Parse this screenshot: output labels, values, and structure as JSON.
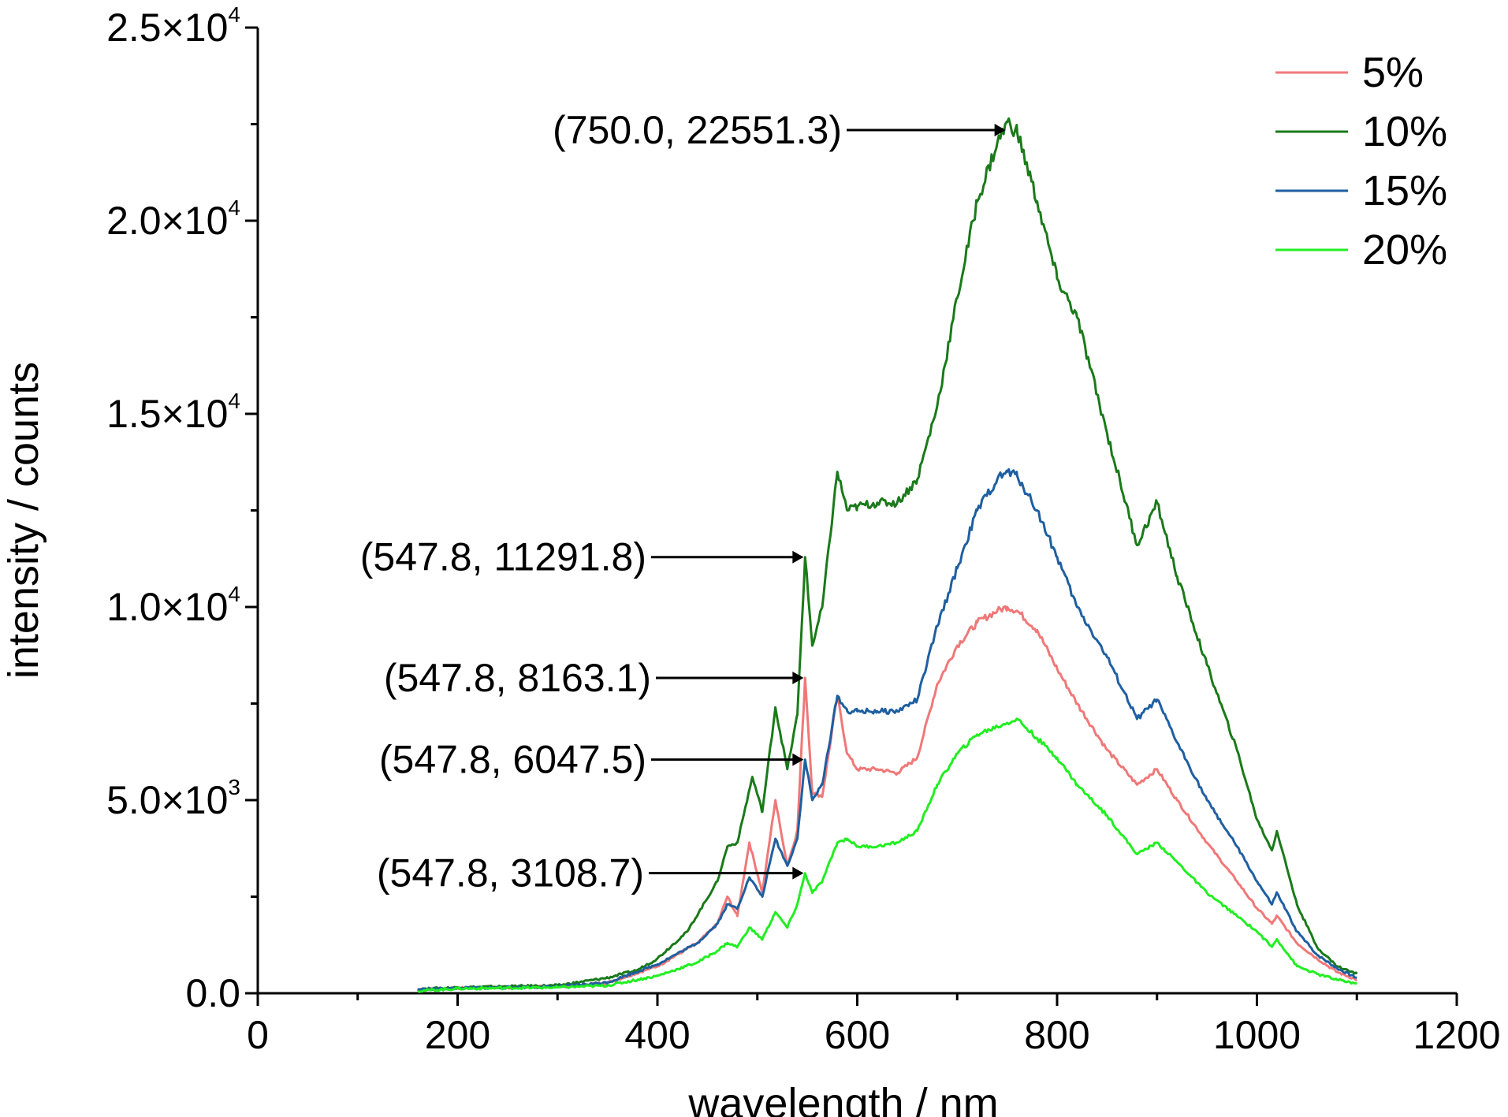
{
  "chart_data": {
    "type": "line",
    "xlabel": "wavelength / nm",
    "ylabel": "intensity / counts",
    "xlim": [
      0,
      1200
    ],
    "ylim": [
      0,
      25000
    ],
    "x_ticks": [
      "0",
      "200",
      "400",
      "600",
      "800",
      "1000",
      "1200"
    ],
    "y_ticks": [
      {
        "value": 0,
        "mantissa": "0.0",
        "exp": ""
      },
      {
        "value": 5000,
        "mantissa": "5.0×10",
        "exp": "3"
      },
      {
        "value": 10000,
        "mantissa": "1.0×10",
        "exp": "4"
      },
      {
        "value": 15000,
        "mantissa": "1.5×10",
        "exp": "4"
      },
      {
        "value": 20000,
        "mantissa": "2.0×10",
        "exp": "4"
      },
      {
        "value": 25000,
        "mantissa": "2.5×10",
        "exp": "4"
      }
    ],
    "grid": false,
    "legend_position": "top-right",
    "series": [
      {
        "name": "5%",
        "color": "#f07878",
        "x": [
          160,
          200,
          300,
          350,
          400,
          440,
          460,
          470,
          480,
          492,
          505,
          518,
          530,
          540,
          547.8,
          555,
          565,
          580,
          590,
          600,
          620,
          640,
          660,
          680,
          700,
          720,
          740,
          750,
          760,
          780,
          800,
          820,
          850,
          880,
          900,
          920,
          950,
          980,
          1000,
          1015,
          1020,
          1040,
          1060,
          1080,
          1100
        ],
        "y": [
          100,
          130,
          170,
          270,
          700,
          1300,
          1800,
          2500,
          2000,
          3900,
          2600,
          5000,
          3300,
          4200,
          8163,
          5200,
          5100,
          7700,
          6200,
          5800,
          5800,
          5700,
          6100,
          8000,
          9000,
          9600,
          9900,
          10000,
          9900,
          9400,
          8400,
          7500,
          6300,
          5400,
          5800,
          5000,
          3900,
          2900,
          2200,
          1800,
          2000,
          1300,
          900,
          550,
          350
        ]
      },
      {
        "name": "10%",
        "color": "#1a7a1a",
        "x": [
          160,
          200,
          300,
          350,
          380,
          400,
          430,
          460,
          470,
          480,
          495,
          505,
          518,
          530,
          540,
          547.8,
          555,
          565,
          580,
          590,
          600,
          620,
          640,
          660,
          680,
          700,
          720,
          740,
          750,
          760,
          780,
          800,
          820,
          850,
          880,
          900,
          920,
          950,
          980,
          1000,
          1015,
          1020,
          1040,
          1060,
          1080,
          1100
        ],
        "y": [
          100,
          150,
          200,
          400,
          600,
          900,
          1600,
          2900,
          3800,
          3900,
          5600,
          4700,
          7400,
          5800,
          7200,
          11292,
          9000,
          10000,
          13500,
          12500,
          12600,
          12700,
          12700,
          13300,
          15200,
          18000,
          20500,
          22000,
          22551,
          22300,
          20500,
          18500,
          17500,
          14500,
          11600,
          12700,
          10800,
          8500,
          6300,
          4500,
          3700,
          4200,
          2300,
          1200,
          700,
          500
        ]
      },
      {
        "name": "15%",
        "color": "#1f5fa0",
        "x": [
          160,
          200,
          300,
          350,
          400,
          440,
          460,
          470,
          480,
          492,
          505,
          518,
          530,
          540,
          547.8,
          555,
          565,
          580,
          590,
          600,
          620,
          640,
          660,
          680,
          700,
          720,
          740,
          750,
          760,
          780,
          800,
          820,
          850,
          880,
          900,
          920,
          950,
          980,
          1000,
          1015,
          1020,
          1040,
          1060,
          1080,
          1100
        ],
        "y": [
          100,
          130,
          170,
          280,
          750,
          1300,
          1800,
          2300,
          2200,
          3000,
          2500,
          4000,
          3300,
          4000,
          6048,
          5000,
          5400,
          7700,
          7300,
          7300,
          7300,
          7300,
          7600,
          9500,
          11000,
          12500,
          13300,
          13500,
          13400,
          12500,
          11300,
          10000,
          8700,
          7100,
          7600,
          6500,
          5000,
          3800,
          2900,
          2300,
          2600,
          1600,
          1000,
          650,
          400
        ]
      },
      {
        "name": "20%",
        "color": "#22ee22",
        "x": [
          160,
          200,
          300,
          350,
          400,
          440,
          460,
          470,
          480,
          492,
          505,
          518,
          530,
          540,
          547.8,
          555,
          565,
          580,
          590,
          600,
          620,
          640,
          660,
          680,
          700,
          720,
          740,
          750,
          760,
          780,
          800,
          820,
          850,
          880,
          900,
          920,
          950,
          980,
          1000,
          1015,
          1020,
          1040,
          1060,
          1080,
          1100
        ],
        "y": [
          60,
          120,
          150,
          200,
          450,
          800,
          1100,
          1300,
          1200,
          1700,
          1400,
          2100,
          1700,
          2300,
          3109,
          2600,
          2900,
          3900,
          4000,
          3800,
          3800,
          3900,
          4200,
          5400,
          6200,
          6700,
          6900,
          7000,
          7100,
          6600,
          6100,
          5400,
          4600,
          3600,
          3900,
          3400,
          2600,
          2000,
          1600,
          1200,
          1400,
          700,
          500,
          350,
          250
        ]
      }
    ],
    "annotations": [
      {
        "label": "(750.0, 22551.3)",
        "x": 750.0,
        "y": 22551.3
      },
      {
        "label": "(547.8, 11291.8)",
        "x": 547.8,
        "y": 11291.8
      },
      {
        "label": "(547.8, 8163.1)",
        "x": 547.8,
        "y": 8163.1
      },
      {
        "label": "(547.8, 6047.5)",
        "x": 547.8,
        "y": 6047.5
      },
      {
        "label": "(547.8, 3108.7)",
        "x": 547.8,
        "y": 3108.7
      }
    ]
  }
}
